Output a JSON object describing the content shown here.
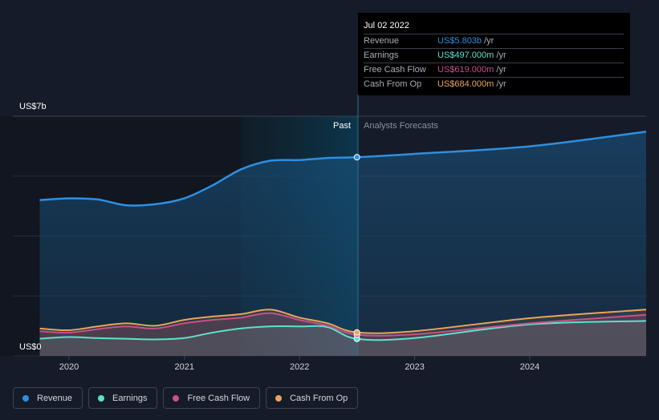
{
  "chart_data": {
    "type": "area",
    "ylabel": "US$7b",
    "y_zero_label": "US$0",
    "ylim": [
      0,
      7
    ],
    "y_unit": "US$b",
    "x_ticks": [
      "2020",
      "2021",
      "2022",
      "2023",
      "2024"
    ],
    "past_label": "Past",
    "forecast_label": "Analysts Forecasts",
    "divider_date": "2022-07-02",
    "series": [
      {
        "name": "Revenue",
        "color": "#2e8fe0",
        "values": [
          [
            "2019-09-30",
            4.55
          ],
          [
            "2019-12-31",
            4.6
          ],
          [
            "2020-03-31",
            4.57
          ],
          [
            "2020-06-30",
            4.4
          ],
          [
            "2020-09-30",
            4.43
          ],
          [
            "2020-12-31",
            4.6
          ],
          [
            "2021-03-31",
            4.98
          ],
          [
            "2021-06-30",
            5.45
          ],
          [
            "2021-09-30",
            5.7
          ],
          [
            "2021-12-31",
            5.72
          ],
          [
            "2022-03-31",
            5.78
          ],
          [
            "2022-07-02",
            5.803
          ],
          [
            "2022-12-31",
            5.9
          ],
          [
            "2023-12-31",
            6.12
          ],
          [
            "2024-12-31",
            6.55
          ]
        ]
      },
      {
        "name": "Earnings",
        "color": "#5ee0cc",
        "values": [
          [
            "2019-09-30",
            0.5
          ],
          [
            "2019-12-31",
            0.55
          ],
          [
            "2020-03-31",
            0.52
          ],
          [
            "2020-06-30",
            0.5
          ],
          [
            "2020-09-30",
            0.48
          ],
          [
            "2020-12-31",
            0.52
          ],
          [
            "2021-03-31",
            0.68
          ],
          [
            "2021-06-30",
            0.8
          ],
          [
            "2021-09-30",
            0.86
          ],
          [
            "2021-12-31",
            0.86
          ],
          [
            "2022-03-31",
            0.84
          ],
          [
            "2022-07-02",
            0.497
          ],
          [
            "2022-12-31",
            0.52
          ],
          [
            "2023-12-31",
            0.92
          ],
          [
            "2024-12-31",
            1.02
          ]
        ]
      },
      {
        "name": "Free Cash Flow",
        "color": "#c9508a",
        "values": [
          [
            "2019-09-30",
            0.72
          ],
          [
            "2019-12-31",
            0.68
          ],
          [
            "2020-03-31",
            0.78
          ],
          [
            "2020-06-30",
            0.86
          ],
          [
            "2020-09-30",
            0.8
          ],
          [
            "2020-12-31",
            0.95
          ],
          [
            "2021-03-31",
            1.05
          ],
          [
            "2021-06-30",
            1.12
          ],
          [
            "2021-09-30",
            1.25
          ],
          [
            "2021-12-31",
            1.05
          ],
          [
            "2022-03-31",
            0.88
          ],
          [
            "2022-07-02",
            0.619
          ],
          [
            "2022-12-31",
            0.63
          ],
          [
            "2023-12-31",
            0.95
          ],
          [
            "2024-12-31",
            1.2
          ]
        ]
      },
      {
        "name": "Cash From Op",
        "color": "#e8a55a",
        "values": [
          [
            "2019-09-30",
            0.8
          ],
          [
            "2019-12-31",
            0.75
          ],
          [
            "2020-03-31",
            0.86
          ],
          [
            "2020-06-30",
            0.95
          ],
          [
            "2020-09-30",
            0.88
          ],
          [
            "2020-12-31",
            1.05
          ],
          [
            "2021-03-31",
            1.15
          ],
          [
            "2021-06-30",
            1.22
          ],
          [
            "2021-09-30",
            1.35
          ],
          [
            "2021-12-31",
            1.12
          ],
          [
            "2022-03-31",
            0.95
          ],
          [
            "2022-07-02",
            0.684
          ],
          [
            "2022-12-31",
            0.72
          ],
          [
            "2023-12-31",
            1.1
          ],
          [
            "2024-12-31",
            1.35
          ]
        ]
      }
    ]
  },
  "tooltip": {
    "date": "Jul 02 2022",
    "rows": [
      {
        "label": "Revenue",
        "value": "US$5.803b",
        "unit": " /yr",
        "color": "#2e8fe0"
      },
      {
        "label": "Earnings",
        "value": "US$497.000m",
        "unit": " /yr",
        "color": "#5ee0cc"
      },
      {
        "label": "Free Cash Flow",
        "value": "US$619.000m",
        "unit": " /yr",
        "color": "#c9508a"
      },
      {
        "label": "Cash From Op",
        "value": "US$684.000m",
        "unit": " /yr",
        "color": "#e8a55a"
      }
    ]
  },
  "legend": [
    {
      "label": "Revenue",
      "color": "#2e8fe0"
    },
    {
      "label": "Earnings",
      "color": "#5ee0cc"
    },
    {
      "label": "Free Cash Flow",
      "color": "#c9508a"
    },
    {
      "label": "Cash From Op",
      "color": "#e8a55a"
    }
  ]
}
